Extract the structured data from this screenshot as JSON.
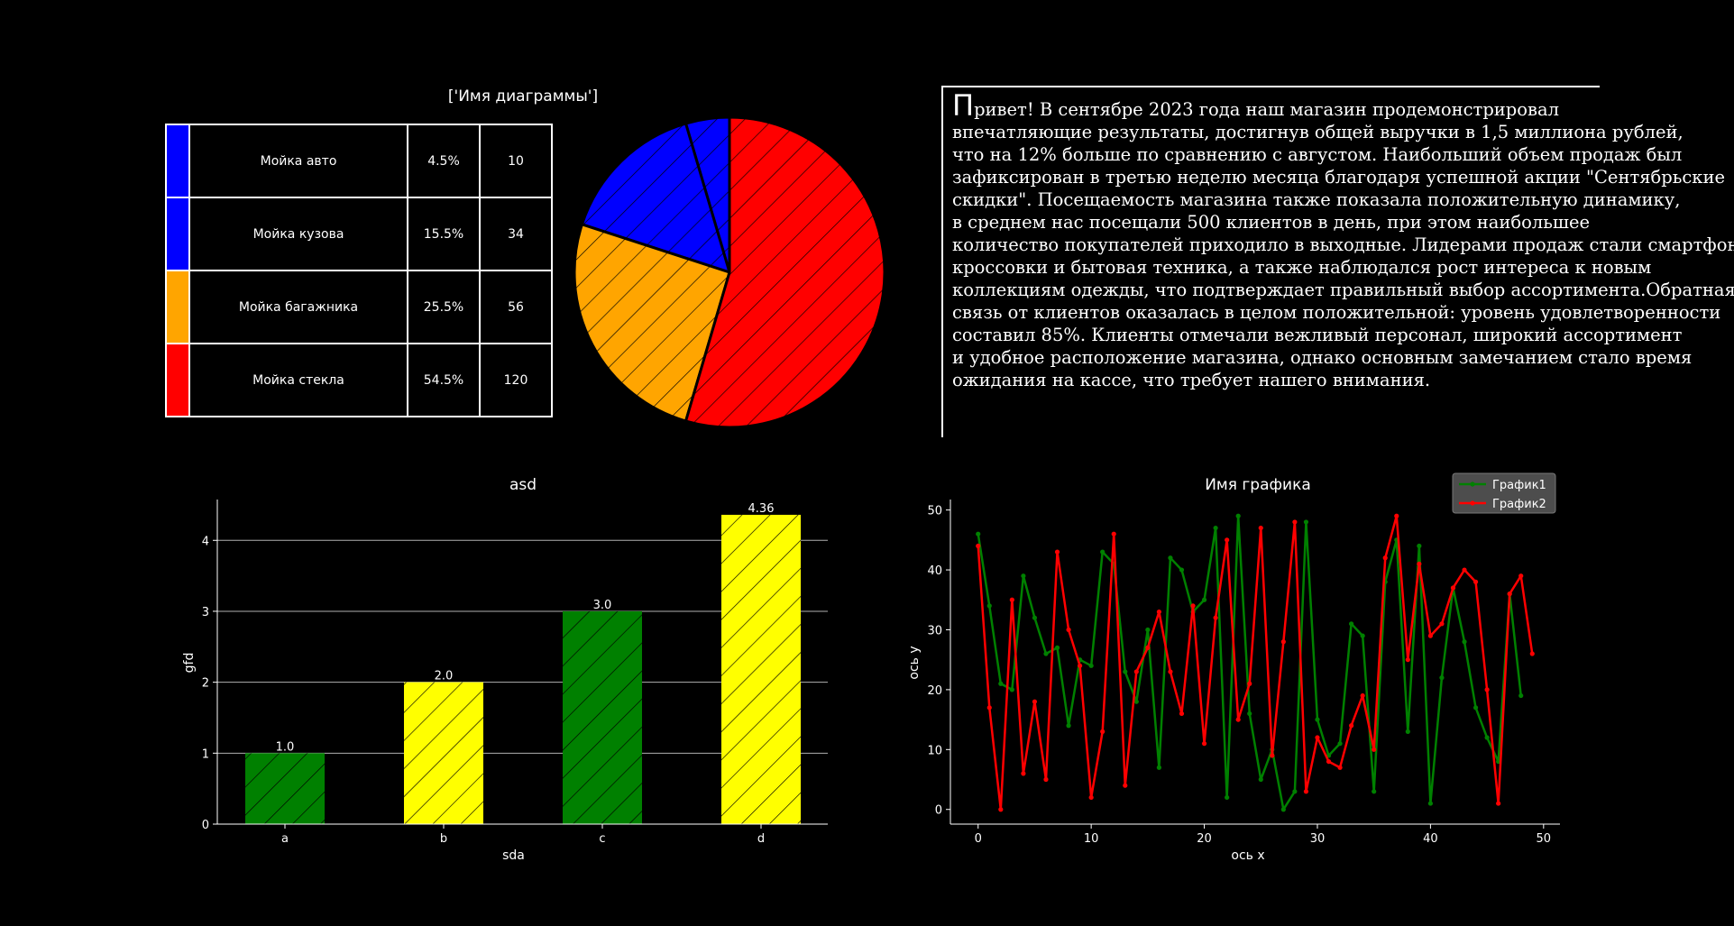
{
  "pie_panel": {
    "title": "['Имя диаграммы']",
    "rows": [
      {
        "name": "Мойка авто",
        "pct": "4.5%",
        "count": "10",
        "color": "#0000ff"
      },
      {
        "name": "Мойка кузова",
        "pct": "15.5%",
        "count": "34",
        "color": "#0000ff"
      },
      {
        "name": "Мойка багажника",
        "pct": "25.5%",
        "count": "56",
        "color": "#ffa500"
      },
      {
        "name": "Мойка стекла",
        "pct": "54.5%",
        "count": "120",
        "color": "#ff0000"
      }
    ]
  },
  "text_panel": {
    "dropcap": "П",
    "lines": [
      "ривет! В сентябре 2023 года наш магазин продемонстрировал",
      "впечатляющие результаты, достигнув общей выручки в 1,5 миллиона рублей,",
      "что на 12% больше по сравнению с августом. Наибольший объем продаж был",
      "зафиксирован в третью неделю месяца благодаря успешной акции \"Сентябрьские",
      "скидки\". Посещаемость магазина также показала положительную динамику,",
      "в среднем нас посещали 500 клиентов в день, при этом наибольшее",
      "количество покупателей приходило в выходные. Лидерами продаж стали смартфоны,",
      "кроссовки и бытовая техника, а также наблюдался рост интереса к новым",
      "коллекциям одежды, что подтверждает правильный выбор ассортимента.Обратная",
      "связь от клиентов оказалась в целом положительной: уровень удовлетворенности",
      "составил 85%. Клиенты отмечали вежливый персонал, широкий ассортимент",
      "и удобное расположение магазина, однако основным замечанием стало время",
      "ожидания на кассе, что требует нашего внимания."
    ]
  },
  "chart_data": [
    {
      "type": "pie",
      "title": "['Имя диаграммы']",
      "labels": [
        "Мойка авто",
        "Мойка кузова",
        "Мойка багажника",
        "Мойка стекла"
      ],
      "values": [
        10,
        34,
        56,
        120
      ],
      "colors": [
        "#0000ff",
        "#0000ff",
        "#ffa500",
        "#ff0000"
      ],
      "hatch": "/"
    },
    {
      "type": "bar",
      "title": "asd",
      "xlabel": "sda",
      "ylabel": "gfd",
      "categories": [
        "a",
        "b",
        "c",
        "d"
      ],
      "values": [
        1.0,
        2.0,
        3.0,
        4.36
      ],
      "value_labels": [
        "1.0",
        "2.0",
        "3.0",
        "4.36"
      ],
      "colors": [
        "#008000",
        "#ffff00",
        "#008000",
        "#ffff00"
      ],
      "yticks": [
        0,
        1,
        2,
        3,
        4
      ],
      "ylim": [
        0,
        4.55
      ],
      "grid": "y"
    },
    {
      "type": "line",
      "title": "Имя графика",
      "xlabel": "ось x",
      "ylabel": "ось y",
      "xlim": [
        -2.45,
        51.45
      ],
      "ylim": [
        -2.45,
        51.45
      ],
      "xticks": [
        0,
        10,
        20,
        30,
        40,
        50
      ],
      "yticks": [
        0,
        10,
        20,
        30,
        40,
        50
      ],
      "legend": "top-right",
      "series": [
        {
          "name": "График1",
          "color": "#008000",
          "values": [
            46,
            34,
            21,
            20,
            39,
            32,
            26,
            27,
            14,
            25,
            24,
            43,
            41,
            23,
            18,
            30,
            7,
            42,
            40,
            33,
            35,
            47,
            2,
            49,
            16,
            5,
            10,
            0,
            3,
            48,
            15,
            9,
            11,
            31,
            29,
            3,
            38,
            45,
            13,
            44,
            1,
            22,
            37,
            28,
            17,
            12,
            8,
            36,
            19
          ]
        },
        {
          "name": "График2",
          "color": "#ff0000",
          "values": [
            44,
            17,
            0,
            35,
            6,
            18,
            5,
            43,
            30,
            24,
            2,
            13,
            46,
            4,
            23,
            27,
            33,
            23,
            16,
            34,
            11,
            32,
            45,
            15,
            21,
            47,
            9,
            28,
            48,
            3,
            12,
            8,
            7,
            14,
            19,
            10,
            42,
            49,
            25,
            41,
            29,
            31,
            37,
            40,
            38,
            20,
            1,
            36,
            39,
            26
          ]
        }
      ]
    }
  ]
}
